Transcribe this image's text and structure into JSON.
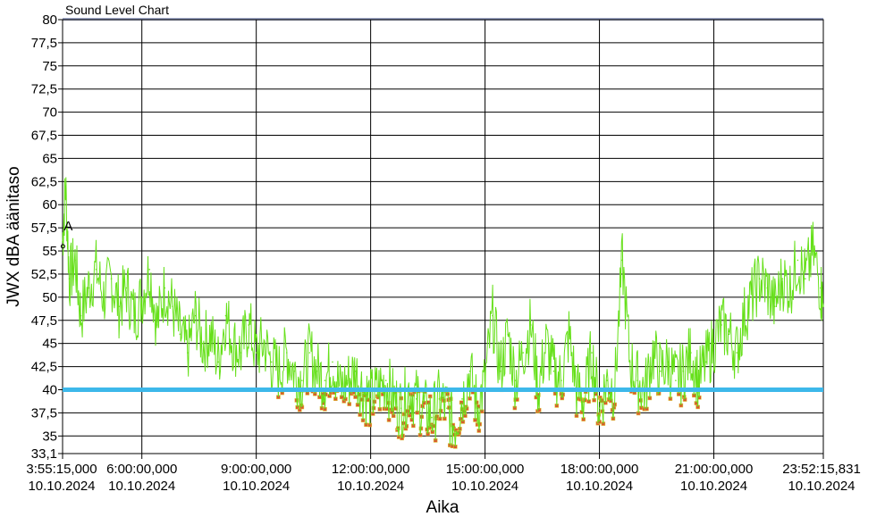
{
  "chart_data": {
    "type": "line",
    "title": "Sound Level Chart",
    "xlabel": "Aika",
    "ylabel": "JWX dBA äänitaso",
    "ylim": [
      33.1,
      80
    ],
    "xlim_hours": [
      3.9208,
      23.8711
    ],
    "y_ticks": [
      "80",
      "77,5",
      "75",
      "72,5",
      "70",
      "67,5",
      "65",
      "62,5",
      "60",
      "57,5",
      "55",
      "52,5",
      "50",
      "47,5",
      "45",
      "42,5",
      "40",
      "37,5",
      "35",
      "33,1"
    ],
    "y_tick_values": [
      80,
      77.5,
      75,
      72.5,
      70,
      67.5,
      65,
      62.5,
      60,
      57.5,
      55,
      52.5,
      50,
      47.5,
      45,
      42.5,
      40,
      37.5,
      35,
      33.1
    ],
    "x_ticks": [
      {
        "hour": 3.9208,
        "time": "3:55:15,000",
        "date": "10.10.2024"
      },
      {
        "hour": 6,
        "time": "6:00:00,000",
        "date": "10.10.2024"
      },
      {
        "hour": 9,
        "time": "9:00:00,000",
        "date": "10.10.2024"
      },
      {
        "hour": 12,
        "time": "12:00:00,000",
        "date": "10.10.2024"
      },
      {
        "hour": 15,
        "time": "15:00:00,000",
        "date": "10.10.2024"
      },
      {
        "hour": 18,
        "time": "18:00:00,000",
        "date": "10.10.2024"
      },
      {
        "hour": 21,
        "time": "21:00:00,000",
        "date": "10.10.2024"
      },
      {
        "hour": 23.8711,
        "time": "23:52:15,831",
        "date": "10.10.2024"
      }
    ],
    "threshold": {
      "value": 40,
      "color": "#3db8ea"
    },
    "marker": {
      "label": "A",
      "x_hour": 3.93,
      "y": 55.5
    },
    "grid": true,
    "colors": {
      "line": "#66e01a",
      "below": "#e05030",
      "below_fill": "#d8c83a",
      "grid": "#000000",
      "top_band": "#a0a8c8"
    },
    "series": [
      {
        "color": "#66e01a",
        "x": [
          3.92,
          4.0,
          4.1,
          4.25,
          4.4,
          4.6,
          4.8,
          5.0,
          5.2,
          5.4,
          5.6,
          5.8,
          6.0,
          6.2,
          6.4,
          6.6,
          6.8,
          7.0,
          7.2,
          7.4,
          7.6,
          7.8,
          8.0,
          8.2,
          8.4,
          8.6,
          8.8,
          9.0,
          9.2,
          9.4,
          9.6,
          9.8,
          10.0,
          10.2,
          10.4,
          10.6,
          10.8,
          11.0,
          11.2,
          11.4,
          11.6,
          11.8,
          12.0,
          12.2,
          12.4,
          12.6,
          12.8,
          13.0,
          13.2,
          13.4,
          13.6,
          13.8,
          14.0,
          14.2,
          14.4,
          14.6,
          14.8,
          15.0,
          15.2,
          15.4,
          15.6,
          15.8,
          16.0,
          16.2,
          16.4,
          16.6,
          16.8,
          17.0,
          17.2,
          17.4,
          17.6,
          17.8,
          18.0,
          18.2,
          18.4,
          18.6,
          18.8,
          19.0,
          19.2,
          19.4,
          19.6,
          19.8,
          20.0,
          20.2,
          20.4,
          20.6,
          20.8,
          21.0,
          21.2,
          21.4,
          21.6,
          21.8,
          22.0,
          22.2,
          22.4,
          22.6,
          22.8,
          23.0,
          23.2,
          23.4,
          23.6,
          23.8,
          23.87
        ],
        "values": [
          56,
          62,
          52,
          54,
          48,
          51,
          53,
          50,
          52,
          49,
          51,
          48,
          50,
          53,
          47,
          51,
          49,
          46,
          44,
          48,
          45,
          46,
          43,
          48,
          45,
          44,
          47,
          44,
          45,
          43,
          42,
          44,
          42,
          41,
          44,
          42,
          41,
          43,
          40,
          41,
          42,
          40,
          39,
          40,
          41,
          39,
          38,
          40,
          39,
          38,
          37,
          39,
          38,
          36,
          39,
          42,
          38,
          41,
          48,
          42,
          46,
          41,
          44,
          47,
          40,
          45,
          42,
          41,
          46,
          40,
          39,
          44,
          38,
          41,
          40,
          54,
          43,
          41,
          40,
          44,
          42,
          43,
          41,
          42,
          44,
          41,
          43,
          45,
          47,
          46,
          44,
          48,
          50,
          52,
          51,
          49,
          52,
          51,
          54,
          52,
          55,
          51,
          49
        ]
      }
    ]
  }
}
